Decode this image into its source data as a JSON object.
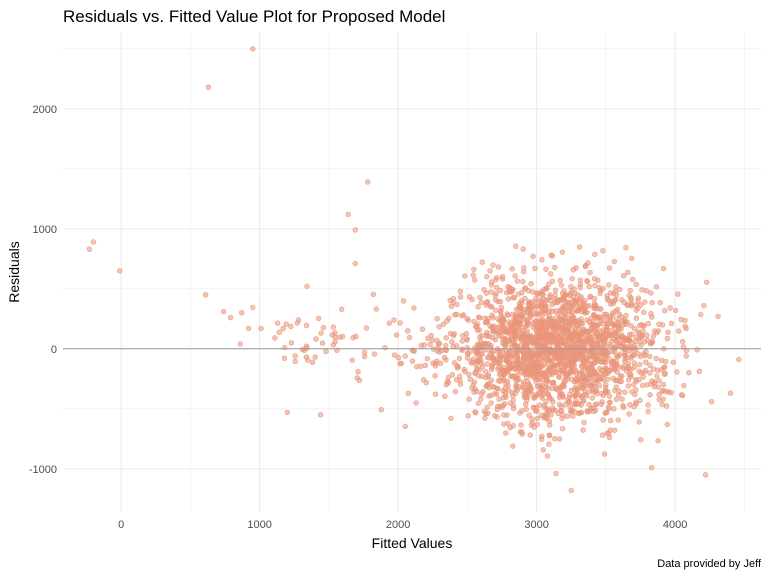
{
  "chart_data": {
    "type": "scatter",
    "title": "Residuals vs. Fitted Value Plot for Proposed Model",
    "xlabel": "Fitted Values",
    "ylabel": "Residuals",
    "caption": "Data provided by Jeff",
    "xlim": [
      -420,
      4620
    ],
    "ylim": [
      -1360,
      2640
    ],
    "x_ticks": [
      0,
      1000,
      2000,
      3000,
      4000
    ],
    "y_ticks": [
      -1000,
      0,
      1000,
      2000
    ],
    "grid": true,
    "reference_line_y": 0,
    "point_color": "#E9967A",
    "reference_line_color": "#999999",
    "grid_color": "#ebebeb",
    "notable_points": [
      {
        "x": 950,
        "y": 2500
      },
      {
        "x": 630,
        "y": 2180
      },
      {
        "x": 1780,
        "y": 1390
      },
      {
        "x": 1640,
        "y": 1120
      },
      {
        "x": 1690,
        "y": 990
      },
      {
        "x": 1690,
        "y": 710
      },
      {
        "x": -200,
        "y": 890
      },
      {
        "x": -230,
        "y": 830
      },
      {
        "x": -10,
        "y": 650
      },
      {
        "x": 610,
        "y": 450
      },
      {
        "x": 740,
        "y": 310
      },
      {
        "x": 950,
        "y": 345
      },
      {
        "x": 870,
        "y": 300
      },
      {
        "x": 790,
        "y": 260
      },
      {
        "x": 1280,
        "y": 240
      },
      {
        "x": 920,
        "y": 170
      },
      {
        "x": 1010,
        "y": 170
      },
      {
        "x": 1110,
        "y": 90
      },
      {
        "x": 860,
        "y": 40
      },
      {
        "x": 1200,
        "y": -530
      },
      {
        "x": 1440,
        "y": -550
      },
      {
        "x": 3140,
        "y": -1040
      },
      {
        "x": 3250,
        "y": -1180
      },
      {
        "x": 4220,
        "y": -1050
      },
      {
        "x": 3830,
        "y": -990
      },
      {
        "x": 4460,
        "y": -90
      },
      {
        "x": 4310,
        "y": 270
      },
      {
        "x": 4400,
        "y": -370
      }
    ],
    "cluster": {
      "x_mean": 3150,
      "x_sd": 380,
      "y_mean": 0,
      "y_sd": 290,
      "count": 2100
    }
  }
}
